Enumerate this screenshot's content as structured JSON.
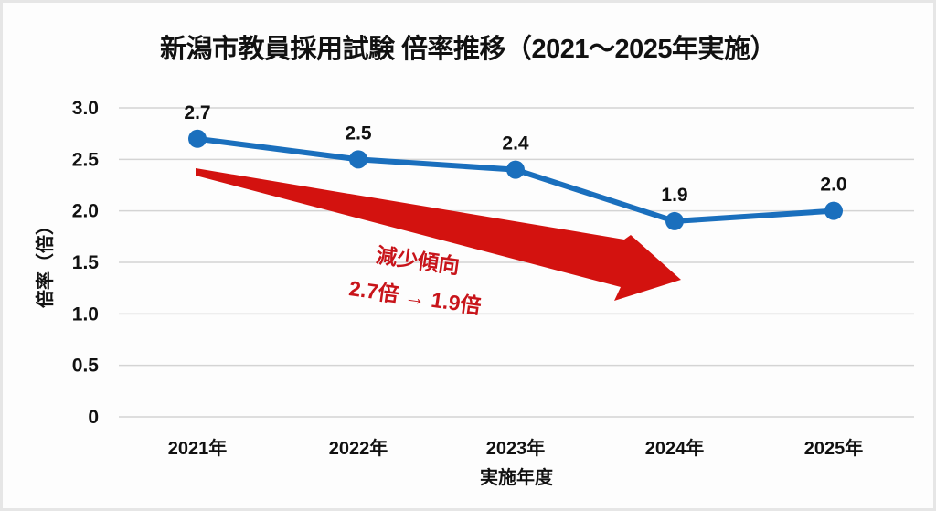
{
  "chart_data": {
    "type": "line",
    "title": "新潟市教員採用試験 倍率推移（2021〜2025年実施）",
    "xlabel": "実施年度",
    "ylabel": "倍率（倍）",
    "categories": [
      "2021年",
      "2022年",
      "2023年",
      "2024年",
      "2025年"
    ],
    "series": [
      {
        "name": "倍率",
        "values": [
          2.7,
          2.5,
          2.4,
          1.9,
          2.0
        ],
        "color": "#1a6fbd"
      }
    ],
    "data_labels": [
      "2.7",
      "2.5",
      "2.4",
      "1.9",
      "2.0"
    ],
    "yticks": [
      "0",
      "0.5",
      "1.0",
      "1.5",
      "2.0",
      "2.5",
      "3.0"
    ],
    "ylim": [
      0,
      3.0
    ],
    "grid": true,
    "legend": null,
    "annotation": {
      "line1": "減少傾向",
      "line2": "2.7倍 → 1.9倍",
      "arrow_color": "#d3120f",
      "text_color": "#c8141a"
    }
  }
}
